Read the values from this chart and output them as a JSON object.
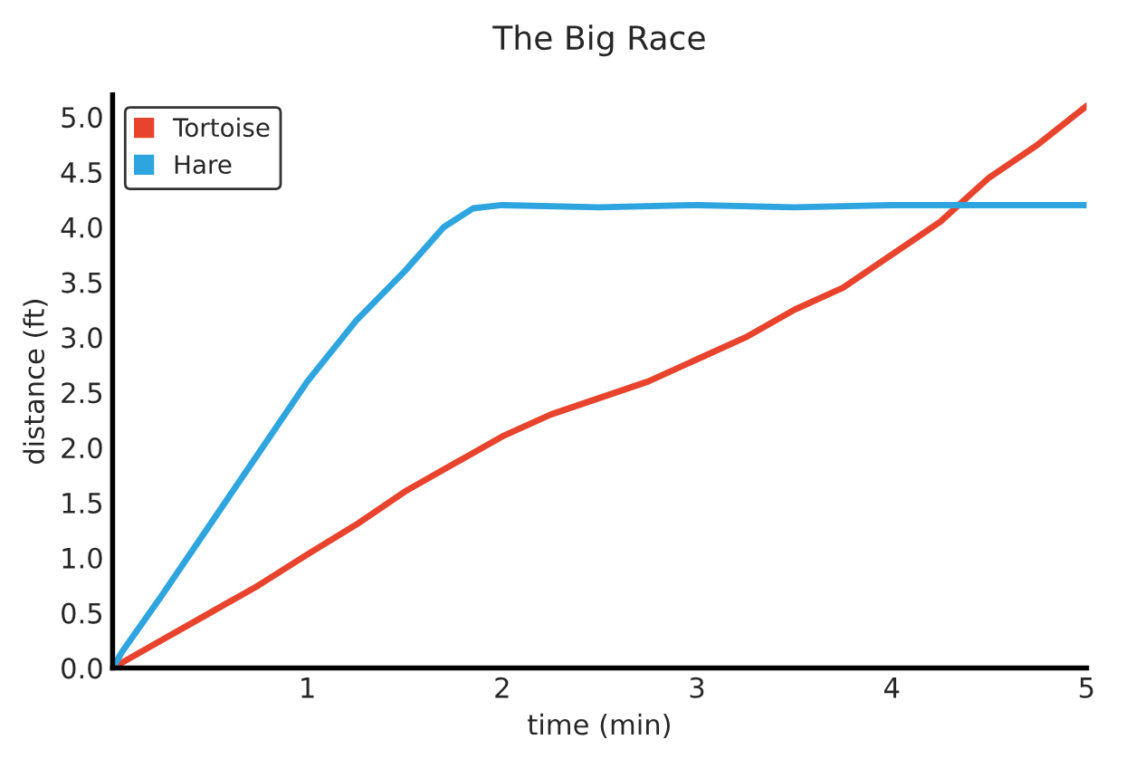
{
  "chart_data": {
    "type": "line",
    "title": "The Big Race",
    "xlabel": "time (min)",
    "ylabel": "distance (ft)",
    "series": [
      {
        "name": "Tortoise",
        "color": "#e8432c",
        "x": [
          0,
          0.25,
          0.5,
          0.75,
          1,
          1.25,
          1.5,
          1.75,
          2,
          2.25,
          2.5,
          2.75,
          3,
          3.25,
          3.5,
          3.75,
          4,
          4.25,
          4.5,
          4.75,
          5
        ],
        "values": [
          0,
          0.25,
          0.5,
          0.75,
          1.03,
          1.3,
          1.6,
          1.85,
          2.1,
          2.3,
          2.45,
          2.6,
          2.8,
          3.0,
          3.25,
          3.45,
          3.75,
          4.05,
          4.45,
          4.75,
          5.1
        ]
      },
      {
        "name": "Hare",
        "color": "#2ea5df",
        "x": [
          0,
          0.05,
          0.25,
          0.5,
          0.75,
          1,
          1.25,
          1.5,
          1.7,
          1.85,
          2,
          2.5,
          3,
          3.5,
          4,
          4.5,
          5
        ],
        "values": [
          0,
          0.15,
          0.65,
          1.3,
          1.95,
          2.6,
          3.15,
          3.6,
          4.0,
          4.17,
          4.2,
          4.18,
          4.2,
          4.18,
          4.2,
          4.2,
          4.2
        ]
      }
    ],
    "xlim": [
      0,
      5
    ],
    "xticks": [
      1,
      2,
      3,
      4,
      5
    ],
    "ylim": [
      0,
      5.2
    ],
    "yticks": [
      {
        "value": 0,
        "label": "0.0"
      },
      0.5,
      {
        "value": 1,
        "label": "1.0"
      },
      1.5,
      {
        "value": 2,
        "label": "2.0"
      },
      2.5,
      {
        "value": 3,
        "label": "3.0"
      },
      3.5,
      {
        "value": 4,
        "label": "4.0"
      },
      4.5,
      {
        "value": 5,
        "label": "5.0"
      }
    ],
    "grid": false,
    "legend": "top left",
    "line_style": "solid"
  }
}
